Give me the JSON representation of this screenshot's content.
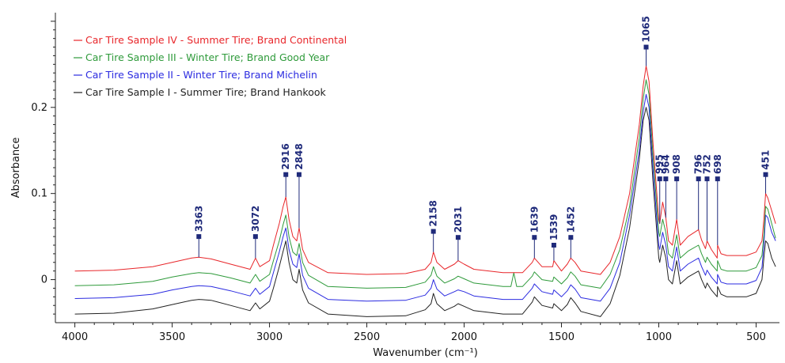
{
  "chart_data": {
    "type": "line",
    "title": "",
    "xlabel": "Wavenumber (cm⁻¹)",
    "ylabel": "Absorbance",
    "xlim": [
      4100,
      380
    ],
    "ylim": [
      -0.05,
      0.31
    ],
    "x_reversed": true,
    "x_ticks": [
      {
        "value": 4000,
        "label": "4000"
      },
      {
        "value": 3500,
        "label": "3500"
      },
      {
        "value": 3000,
        "label": "3000"
      },
      {
        "value": 2500,
        "label": "2500"
      },
      {
        "value": 2000,
        "label": "2000"
      },
      {
        "value": 1500,
        "label": "1500"
      },
      {
        "value": 1000,
        "label": "1000"
      },
      {
        "value": 500,
        "label": "500"
      }
    ],
    "y_ticks": [
      {
        "value": 0,
        "label": "0"
      },
      {
        "value": 0.1,
        "label": "0.1"
      },
      {
        "value": 0.2,
        "label": "0.2"
      }
    ],
    "legend_position": "top-left",
    "series": [
      {
        "name": "Car Tire Sample IV - Summer Tire; Brand Continental",
        "color": "#e8262a",
        "x": [
          4000,
          3800,
          3600,
          3500,
          3400,
          3363,
          3300,
          3200,
          3100,
          3072,
          3050,
          3000,
          2980,
          2950,
          2930,
          2916,
          2900,
          2880,
          2860,
          2848,
          2830,
          2800,
          2700,
          2500,
          2300,
          2200,
          2170,
          2158,
          2140,
          2100,
          2050,
          2031,
          2000,
          1950,
          1800,
          1700,
          1650,
          1639,
          1600,
          1545,
          1539,
          1500,
          1470,
          1452,
          1430,
          1400,
          1300,
          1250,
          1200,
          1150,
          1100,
          1080,
          1065,
          1050,
          1030,
          1000,
          995,
          980,
          964,
          950,
          930,
          908,
          890,
          850,
          796,
          780,
          760,
          752,
          730,
          700,
          698,
          680,
          650,
          600,
          550,
          500,
          470,
          460,
          451,
          440,
          420,
          400
        ],
        "y": [
          0.01,
          0.011,
          0.015,
          0.02,
          0.025,
          0.026,
          0.024,
          0.018,
          0.012,
          0.025,
          0.015,
          0.022,
          0.04,
          0.065,
          0.085,
          0.096,
          0.07,
          0.05,
          0.045,
          0.06,
          0.035,
          0.02,
          0.008,
          0.006,
          0.007,
          0.012,
          0.02,
          0.032,
          0.02,
          0.012,
          0.018,
          0.022,
          0.018,
          0.012,
          0.008,
          0.008,
          0.02,
          0.025,
          0.015,
          0.015,
          0.022,
          0.01,
          0.018,
          0.025,
          0.02,
          0.01,
          0.006,
          0.02,
          0.05,
          0.1,
          0.18,
          0.225,
          0.248,
          0.23,
          0.16,
          0.07,
          0.065,
          0.09,
          0.072,
          0.045,
          0.04,
          0.07,
          0.04,
          0.05,
          0.058,
          0.046,
          0.036,
          0.045,
          0.035,
          0.025,
          0.04,
          0.03,
          0.028,
          0.028,
          0.028,
          0.032,
          0.045,
          0.07,
          0.1,
          0.095,
          0.08,
          0.065
        ]
      },
      {
        "name": "Car Tire Sample III - Winter Tire; Brand Good Year",
        "color": "#2e9a3a",
        "x": [
          4000,
          3800,
          3600,
          3500,
          3400,
          3363,
          3300,
          3200,
          3100,
          3072,
          3050,
          3000,
          2980,
          2950,
          2930,
          2916,
          2900,
          2880,
          2860,
          2848,
          2830,
          2800,
          2700,
          2500,
          2300,
          2200,
          2170,
          2158,
          2140,
          2100,
          2050,
          2031,
          2000,
          1950,
          1800,
          1760,
          1745,
          1730,
          1700,
          1650,
          1639,
          1600,
          1545,
          1539,
          1500,
          1470,
          1452,
          1430,
          1400,
          1300,
          1250,
          1200,
          1150,
          1100,
          1080,
          1065,
          1050,
          1030,
          1000,
          995,
          980,
          964,
          950,
          930,
          908,
          890,
          850,
          796,
          780,
          760,
          752,
          730,
          700,
          698,
          680,
          650,
          600,
          550,
          500,
          470,
          460,
          451,
          440,
          420,
          400
        ],
        "y": [
          -0.007,
          -0.006,
          -0.002,
          0.003,
          0.007,
          0.008,
          0.007,
          0.002,
          -0.004,
          0.006,
          -0.002,
          0.006,
          0.022,
          0.045,
          0.064,
          0.075,
          0.05,
          0.032,
          0.028,
          0.042,
          0.02,
          0.005,
          -0.008,
          -0.01,
          -0.009,
          -0.003,
          0.005,
          0.015,
          0.004,
          -0.004,
          0.001,
          0.004,
          0.001,
          -0.004,
          -0.008,
          -0.008,
          0.008,
          -0.008,
          -0.008,
          0.004,
          0.009,
          0.0,
          -0.002,
          0.003,
          -0.005,
          0.002,
          0.009,
          0.004,
          -0.006,
          -0.01,
          0.006,
          0.035,
          0.085,
          0.165,
          0.21,
          0.232,
          0.215,
          0.145,
          0.055,
          0.05,
          0.07,
          0.055,
          0.03,
          0.025,
          0.052,
          0.025,
          0.033,
          0.04,
          0.03,
          0.02,
          0.026,
          0.018,
          0.01,
          0.022,
          0.012,
          0.01,
          0.01,
          0.01,
          0.014,
          0.028,
          0.052,
          0.085,
          0.082,
          0.065,
          0.048
        ]
      },
      {
        "name": "Car Tire Sample II - Winter Tire; Brand Michelin",
        "color": "#2b2be0",
        "x": [
          4000,
          3800,
          3600,
          3500,
          3400,
          3363,
          3300,
          3200,
          3100,
          3072,
          3050,
          3000,
          2980,
          2950,
          2930,
          2916,
          2900,
          2880,
          2860,
          2848,
          2830,
          2800,
          2700,
          2500,
          2300,
          2200,
          2170,
          2158,
          2140,
          2100,
          2050,
          2031,
          2000,
          1950,
          1800,
          1700,
          1650,
          1639,
          1600,
          1545,
          1539,
          1500,
          1470,
          1452,
          1430,
          1400,
          1300,
          1250,
          1200,
          1150,
          1100,
          1080,
          1065,
          1050,
          1030,
          1000,
          995,
          980,
          964,
          950,
          930,
          908,
          890,
          850,
          796,
          780,
          760,
          752,
          730,
          700,
          698,
          680,
          650,
          600,
          550,
          500,
          470,
          460,
          451,
          440,
          420,
          400
        ],
        "y": [
          -0.022,
          -0.021,
          -0.017,
          -0.012,
          -0.008,
          -0.007,
          -0.008,
          -0.013,
          -0.019,
          -0.01,
          -0.017,
          -0.008,
          0.008,
          0.032,
          0.05,
          0.06,
          0.035,
          0.018,
          0.014,
          0.03,
          0.005,
          -0.01,
          -0.023,
          -0.025,
          -0.024,
          -0.018,
          -0.01,
          0.0,
          -0.011,
          -0.019,
          -0.014,
          -0.012,
          -0.014,
          -0.019,
          -0.023,
          -0.023,
          -0.01,
          -0.005,
          -0.014,
          -0.017,
          -0.012,
          -0.02,
          -0.013,
          -0.006,
          -0.011,
          -0.021,
          -0.025,
          -0.01,
          0.02,
          0.075,
          0.15,
          0.195,
          0.215,
          0.2,
          0.13,
          0.04,
          0.035,
          0.055,
          0.04,
          0.015,
          0.01,
          0.038,
          0.01,
          0.018,
          0.025,
          0.015,
          0.005,
          0.011,
          0.003,
          -0.005,
          0.006,
          -0.003,
          -0.005,
          -0.005,
          -0.005,
          -0.001,
          0.014,
          0.04,
          0.075,
          0.072,
          0.055,
          0.045
        ]
      },
      {
        "name": "Car Tire Sample I - Summer Tire; Brand Hankook",
        "color": "#222222",
        "x": [
          4000,
          3800,
          3600,
          3500,
          3400,
          3363,
          3300,
          3200,
          3100,
          3072,
          3050,
          3000,
          2980,
          2950,
          2930,
          2916,
          2900,
          2880,
          2860,
          2848,
          2830,
          2800,
          2700,
          2500,
          2300,
          2200,
          2170,
          2158,
          2140,
          2100,
          2050,
          2031,
          2000,
          1950,
          1800,
          1700,
          1650,
          1639,
          1600,
          1545,
          1539,
          1500,
          1470,
          1452,
          1430,
          1400,
          1300,
          1250,
          1200,
          1150,
          1100,
          1080,
          1065,
          1050,
          1030,
          1000,
          995,
          980,
          964,
          950,
          930,
          908,
          890,
          850,
          796,
          780,
          760,
          752,
          730,
          700,
          698,
          680,
          650,
          600,
          550,
          500,
          470,
          460,
          451,
          440,
          420,
          400
        ],
        "y": [
          -0.04,
          -0.039,
          -0.034,
          -0.029,
          -0.024,
          -0.023,
          -0.024,
          -0.03,
          -0.036,
          -0.027,
          -0.034,
          -0.025,
          -0.01,
          0.015,
          0.033,
          0.045,
          0.02,
          0.0,
          -0.004,
          0.012,
          -0.012,
          -0.027,
          -0.04,
          -0.043,
          -0.042,
          -0.035,
          -0.028,
          -0.016,
          -0.028,
          -0.036,
          -0.031,
          -0.028,
          -0.031,
          -0.036,
          -0.04,
          -0.04,
          -0.026,
          -0.02,
          -0.03,
          -0.033,
          -0.028,
          -0.036,
          -0.029,
          -0.021,
          -0.027,
          -0.037,
          -0.043,
          -0.028,
          0.005,
          0.06,
          0.14,
          0.185,
          0.2,
          0.185,
          0.115,
          0.025,
          0.02,
          0.04,
          0.025,
          0.0,
          -0.005,
          0.022,
          -0.005,
          0.003,
          0.01,
          0.0,
          -0.01,
          -0.004,
          -0.012,
          -0.02,
          -0.008,
          -0.017,
          -0.02,
          -0.02,
          -0.02,
          -0.016,
          0.0,
          0.025,
          0.045,
          0.042,
          0.025,
          0.015
        ]
      }
    ],
    "annotations": [
      {
        "label": "3363",
        "x": 3363,
        "y": 0.05
      },
      {
        "label": "3072",
        "x": 3072,
        "y": 0.05
      },
      {
        "label": "2916",
        "x": 2916,
        "y": 0.122
      },
      {
        "label": "2848",
        "x": 2848,
        "y": 0.122
      },
      {
        "label": "2158",
        "x": 2158,
        "y": 0.056
      },
      {
        "label": "2031",
        "x": 2031,
        "y": 0.049
      },
      {
        "label": "1639",
        "x": 1639,
        "y": 0.049
      },
      {
        "label": "1539",
        "x": 1539,
        "y": 0.04
      },
      {
        "label": "1452",
        "x": 1452,
        "y": 0.049
      },
      {
        "label": "1065",
        "x": 1065,
        "y": 0.27
      },
      {
        "label": "995",
        "x": 995,
        "y": 0.117
      },
      {
        "label": "964",
        "x": 964,
        "y": 0.117
      },
      {
        "label": "908",
        "x": 908,
        "y": 0.117
      },
      {
        "label": "796",
        "x": 796,
        "y": 0.117
      },
      {
        "label": "752",
        "x": 752,
        "y": 0.117
      },
      {
        "label": "698",
        "x": 698,
        "y": 0.117
      },
      {
        "label": "451",
        "x": 451,
        "y": 0.122
      }
    ],
    "annotation_color": "#1f2a7a"
  }
}
